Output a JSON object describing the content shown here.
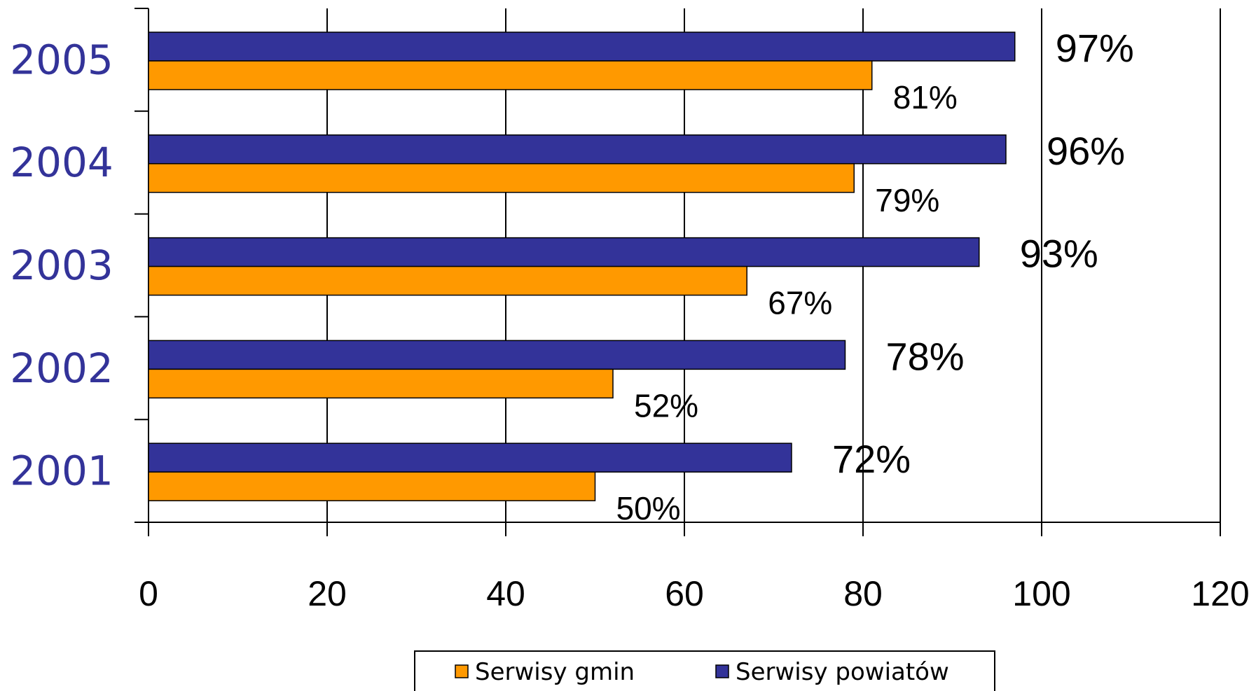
{
  "chart_data": {
    "type": "bar",
    "orientation": "horizontal",
    "categories": [
      "2005",
      "2004",
      "2003",
      "2002",
      "2001"
    ],
    "series": [
      {
        "name": "Serwisy powiatów",
        "values": [
          97,
          96,
          93,
          78,
          72
        ],
        "labels": [
          "97%",
          "96%",
          "93%",
          "78%",
          "72%"
        ],
        "color": "#333399"
      },
      {
        "name": "Serwisy gmin",
        "values": [
          81,
          79,
          67,
          52,
          50
        ],
        "labels": [
          "81%",
          "79%",
          "67%",
          "52%",
          "50%"
        ],
        "color": "#FF9900"
      }
    ],
    "x_ticks": [
      "0",
      "20",
      "40",
      "60",
      "80",
      "100",
      "120"
    ],
    "xlim": [
      0,
      120
    ],
    "grid": true,
    "legend": {
      "position": "bottom",
      "items": [
        {
          "label": "Serwisy gmin",
          "color": "#FF9900"
        },
        {
          "label": "Serwisy powiatów",
          "color": "#333399"
        }
      ]
    },
    "category_label_color": "#333399"
  }
}
